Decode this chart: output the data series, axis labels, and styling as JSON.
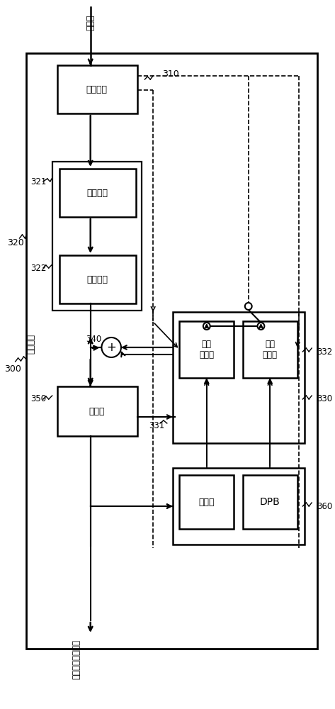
{
  "title_top": "比特流",
  "lbl_device": "解码设备",
  "ref_300": "300",
  "lbl_entropy": "熵解码器",
  "ref_310": "310",
  "lbl_iquant": "反量化器",
  "ref_321": "321",
  "ref_320": "320",
  "lbl_itrans": "逆变换器",
  "ref_322": "322",
  "ref_340": "340",
  "lbl_filter": "滤波器",
  "ref_350": "350",
  "lbl_intra": "帧内\n预测器",
  "lbl_inter": "帧间\n预测器",
  "ref_330": "330",
  "ref_332": "332",
  "ref_331": "331",
  "lbl_mem": "存儲器",
  "lbl_dpb": "DPB",
  "ref_360": "360",
  "lbl_output": "重构图像（图片）"
}
